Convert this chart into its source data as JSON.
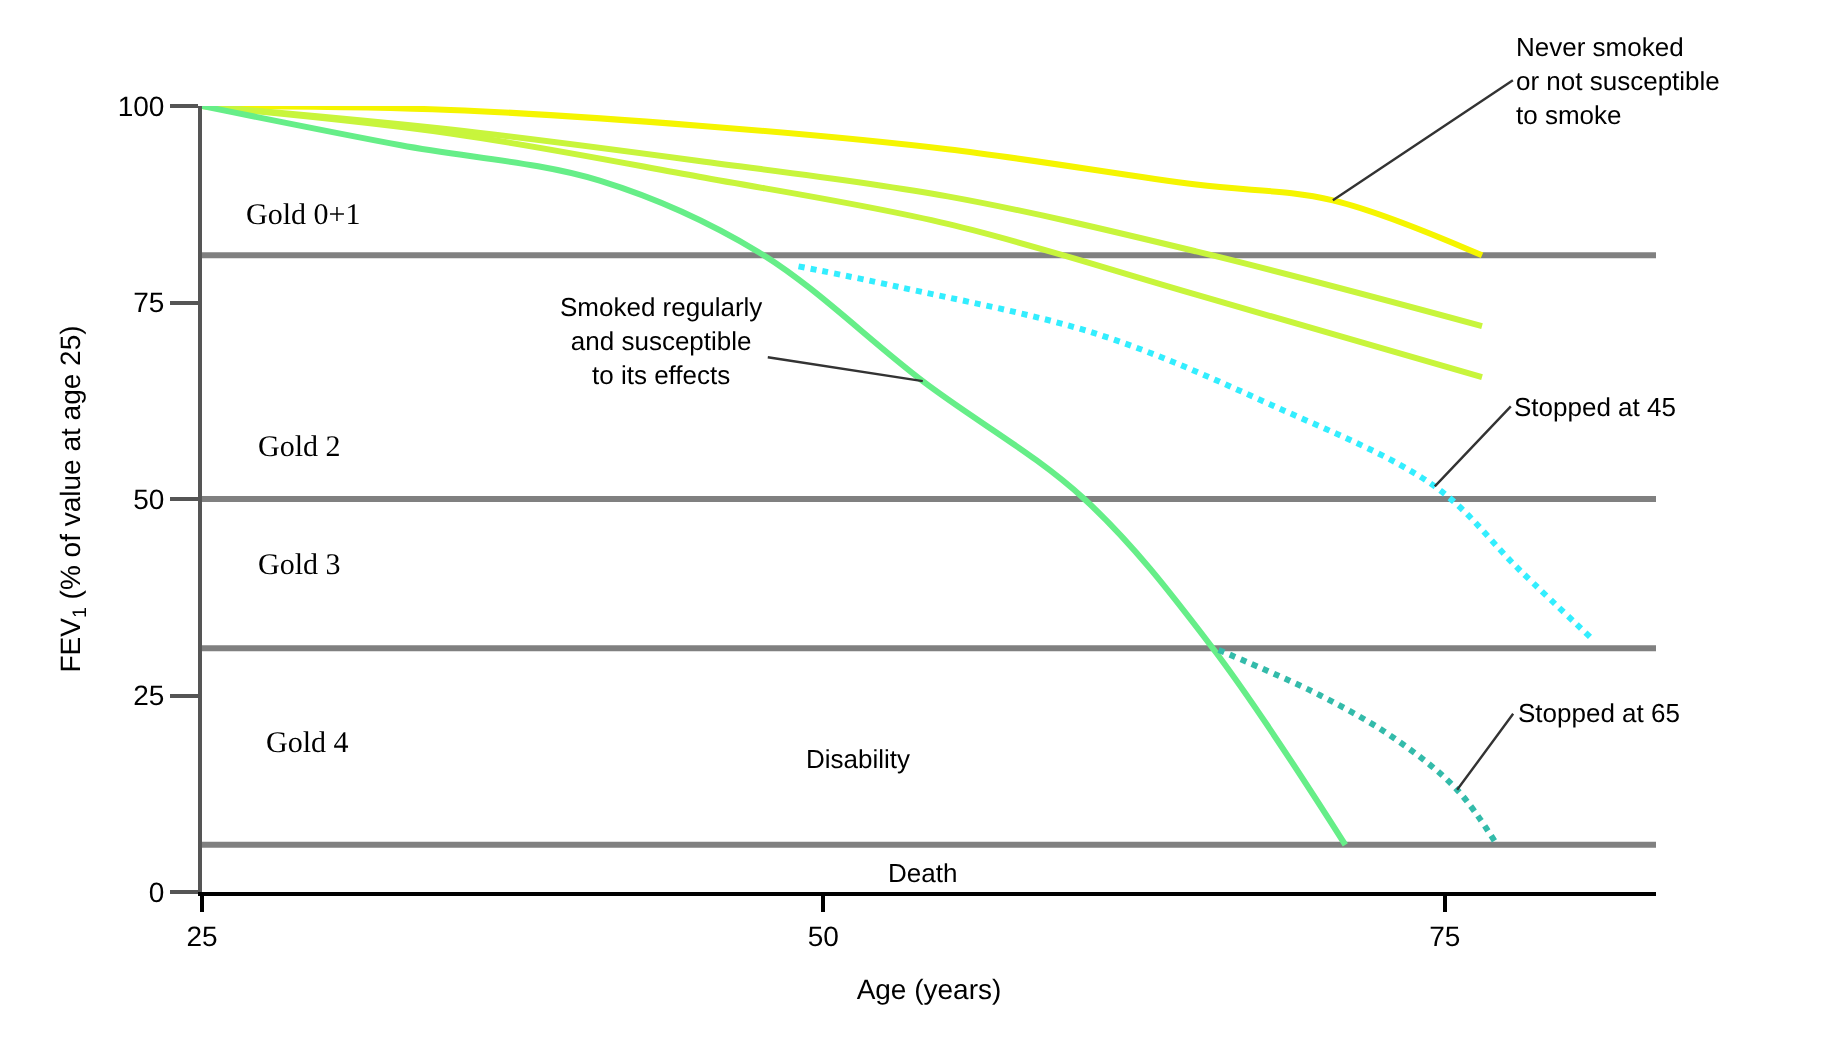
{
  "chart_data": {
    "type": "line",
    "xlabel": "Age (years)",
    "ylabel": "FEV$_{1}$ (% of value at age 25)",
    "xlim": [
      25,
      83.5
    ],
    "xticks": [
      25,
      50,
      75
    ],
    "ylim": [
      0,
      100
    ],
    "yticks": [
      0,
      25,
      50,
      75,
      100
    ],
    "marker": "none",
    "series": [
      {
        "color": "#f5f500",
        "line_style": "solid",
        "x": [
          25,
          35,
          45,
          55,
          65,
          70.5,
          76.5
        ],
        "values": [
          100,
          99.5,
          97.5,
          94.5,
          90,
          88,
          81
        ]
      },
      {
        "color": "#c8f53c",
        "line_style": "solid",
        "x": [
          25,
          35,
          45,
          55,
          65,
          76.5
        ],
        "values": [
          100,
          97,
          93,
          88.5,
          81.5,
          72
        ]
      },
      {
        "color": "#c8f53c",
        "line_style": "solid",
        "x": [
          25,
          35,
          45,
          55,
          65,
          76.5
        ],
        "values": [
          100,
          96.5,
          91,
          85,
          76,
          65.5
        ]
      },
      {
        "color": "#66ee88",
        "line_style": "solid",
        "x": [
          25,
          33,
          41,
          47.4,
          54,
          60.5,
          65.6,
          71
        ],
        "values": [
          100,
          95,
          90.5,
          81.4,
          65,
          50,
          31.3,
          6
        ]
      },
      {
        "color": "#33eeff",
        "line_style": "dotted",
        "x": [
          49,
          53,
          61,
          68,
          74.6,
          78,
          81
        ],
        "values": [
          79.6,
          77,
          71,
          62,
          51.6,
          41,
          32
        ]
      },
      {
        "color": "#33bbaa",
        "line_style": "dotted",
        "x": [
          65.9,
          70,
          73,
          75.5,
          77.1
        ],
        "values": [
          30.8,
          25,
          19.5,
          13,
          6
        ]
      }
    ],
    "ref_lines": [
      {
        "axis": "y",
        "value": 81,
        "color": "#808080"
      },
      {
        "axis": "y",
        "value": 50,
        "color": "#808080"
      },
      {
        "axis": "y",
        "value": 31,
        "color": "#808080"
      },
      {
        "axis": "y",
        "value": 6,
        "color": "#808080"
      }
    ],
    "annotations": [
      {
        "text": "Never smoked\nor not susceptible\nto smoke",
        "x": 70.5,
        "y": 88
      },
      {
        "text": "Smoked regularly\nand susceptible\nto its effects",
        "x": 54,
        "y": 65
      },
      {
        "text": "Stopped at 45",
        "x": 74.6,
        "y": 51.6
      },
      {
        "text": "Stopped at 65",
        "x": 75.5,
        "y": 13
      },
      "Gold 0+1",
      "Gold 2",
      "Gold 3",
      "Gold 4",
      "Disability",
      "Death"
    ]
  }
}
